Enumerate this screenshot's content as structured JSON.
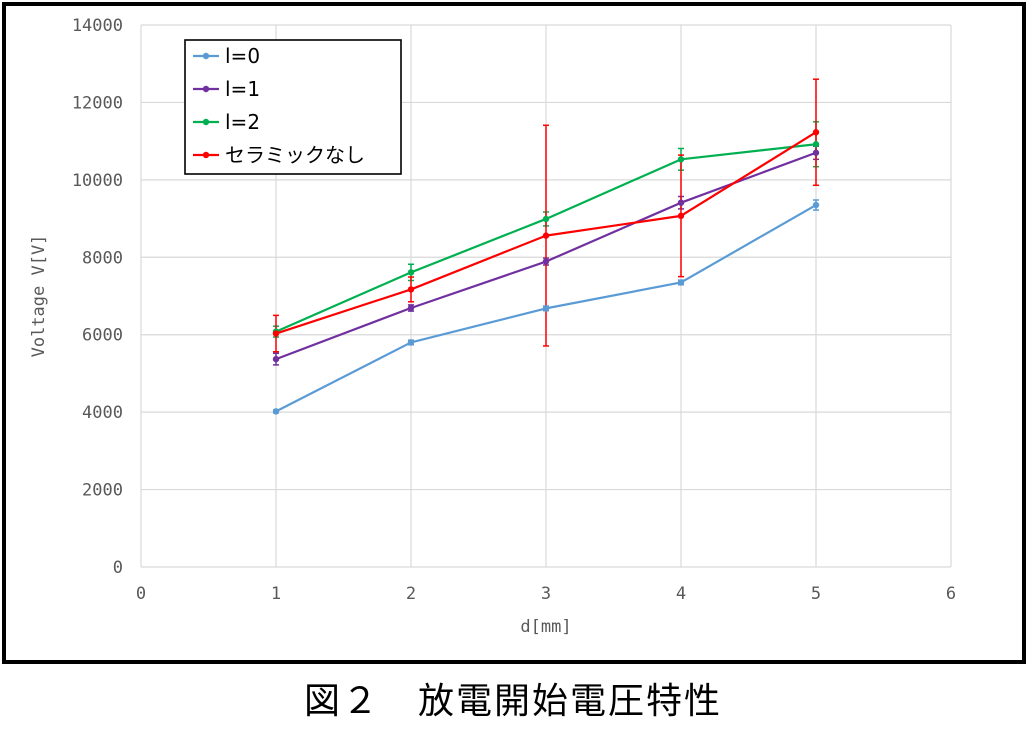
{
  "caption": "図２　放電開始電圧特性",
  "chart_data": {
    "type": "line",
    "title": "",
    "xlabel": "d[mm]",
    "ylabel": "Voltage V[V]",
    "xlim": [
      0,
      6
    ],
    "ylim": [
      0,
      14000
    ],
    "x_ticks": [
      0,
      1,
      2,
      3,
      4,
      5,
      6
    ],
    "y_ticks": [
      0,
      2000,
      4000,
      6000,
      8000,
      10000,
      12000,
      14000
    ],
    "grid": true,
    "legend_position": "top-left",
    "x": [
      1,
      2,
      3,
      4,
      5
    ],
    "series": [
      {
        "name": "l=0",
        "color": "#5b9bd5",
        "values": [
          4020,
          5800,
          6680,
          7350,
          9350
        ],
        "err": [
          40,
          60,
          60,
          60,
          130
        ]
      },
      {
        "name": "l=1",
        "color": "#7030a0",
        "values": [
          5370,
          6690,
          7890,
          9410,
          10700
        ],
        "err": [
          150,
          80,
          90,
          160,
          170
        ]
      },
      {
        "name": "l=2",
        "color": "#00b050",
        "values": [
          6080,
          7610,
          8990,
          10530,
          10920
        ],
        "err": [
          140,
          210,
          180,
          280,
          580
        ]
      },
      {
        "name": "セラミックなし",
        "color": "#ff0000",
        "values": [
          6030,
          7170,
          8560,
          9070,
          11230
        ],
        "err": [
          470,
          320,
          2850,
          1570,
          1370
        ]
      }
    ]
  }
}
